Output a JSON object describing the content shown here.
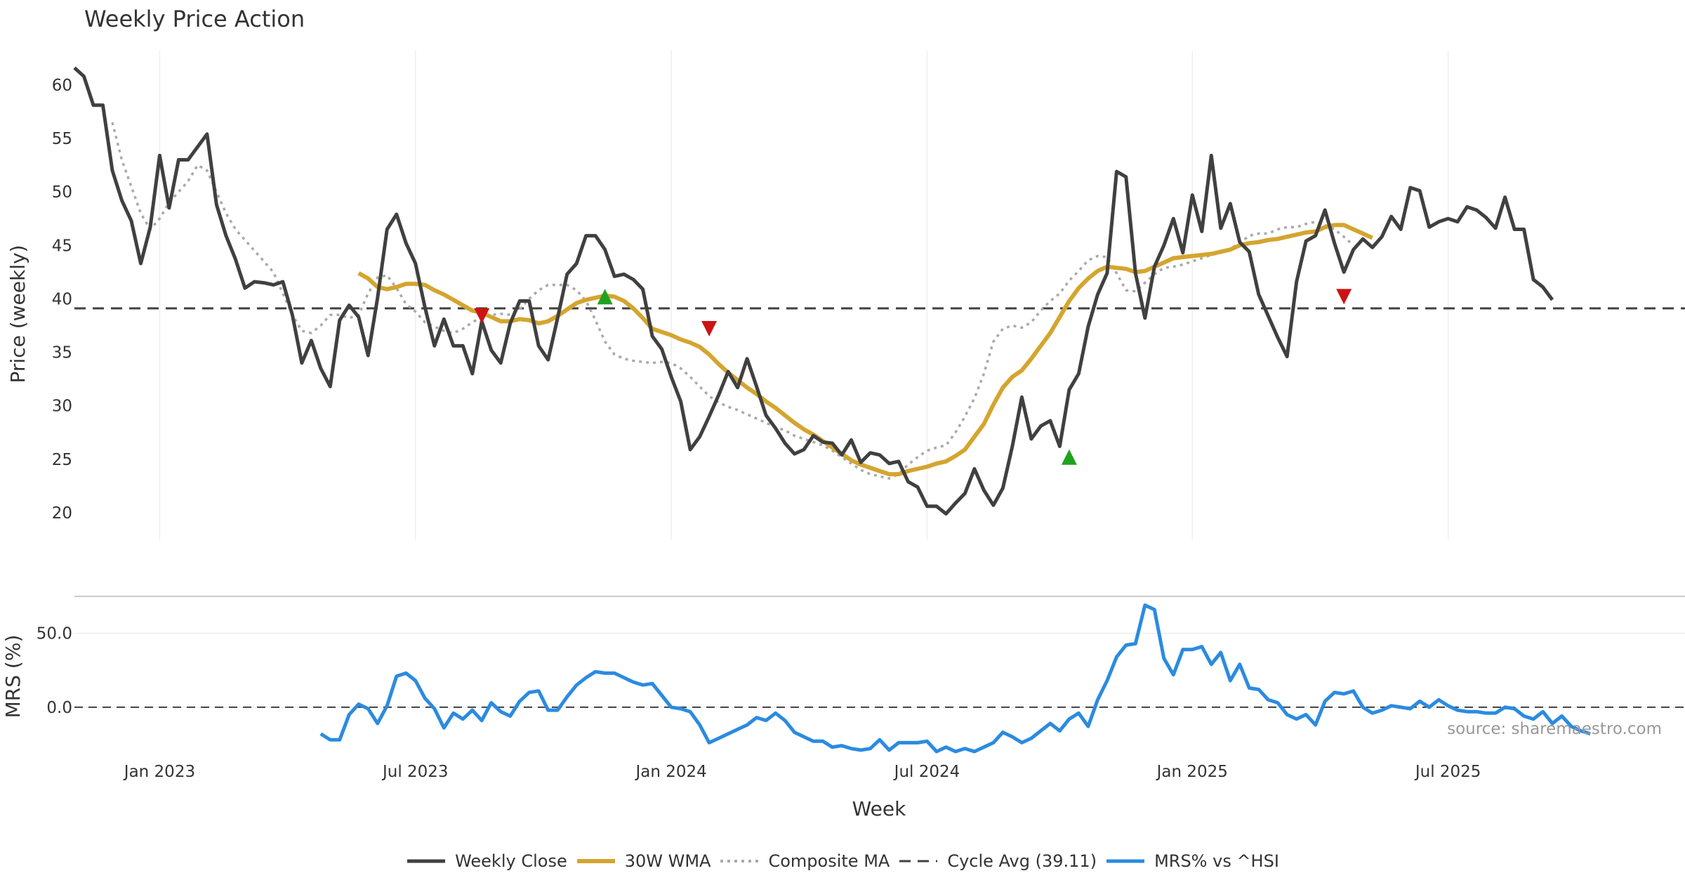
{
  "title": "Weekly Price Action",
  "source_note": "source: sharemaestro.com",
  "legend": [
    {
      "label": "Weekly Close",
      "color": "#404040",
      "style": "solid"
    },
    {
      "label": "30W WMA",
      "color": "#D4A52F",
      "style": "solid"
    },
    {
      "label": "Composite MA",
      "color": "#AAAAAA",
      "style": "dotted"
    },
    {
      "label": "Cycle Avg (39.11)",
      "color": "#404040",
      "style": "dashed"
    },
    {
      "label": "MRS% vs ^HSI",
      "color": "#2B8BE0",
      "style": "solid"
    }
  ],
  "colors": {
    "close": "#404040",
    "wma": "#D4A52F",
    "composite": "#AAAAAA",
    "cycle": "#404040",
    "mrs": "#2B8BE0",
    "up": "#1FA21F",
    "down": "#CC1414",
    "grid": "#EEEEEE"
  },
  "chart_data": [
    {
      "type": "line",
      "panel": "price",
      "ylabel": "Price (weekly)",
      "y_ticks": [
        20,
        25,
        30,
        35,
        40,
        45,
        50,
        55,
        60
      ],
      "ylim": [
        17.5,
        64
      ],
      "x_range_weeks": [
        0,
        170
      ],
      "x_ticks": [
        {
          "label": "Jan 2023",
          "week": 9
        },
        {
          "label": "Jul 2023",
          "week": 36
        },
        {
          "label": "Jan 2024",
          "week": 63
        },
        {
          "label": "Jul 2024",
          "week": 90
        },
        {
          "label": "Jan 2025",
          "week": 118
        },
        {
          "label": "Jul 2025",
          "week": 145
        }
      ],
      "cycle_avg": 39.11,
      "series": [
        {
          "name": "Weekly Close",
          "start_week": 0,
          "values": [
            61.6,
            60.8,
            58.1,
            58.1,
            52.0,
            49.2,
            47.3,
            43.3,
            46.7,
            53.4,
            48.5,
            53.0,
            53.0,
            54.2,
            55.4,
            48.8,
            45.9,
            43.7,
            41.0,
            41.6,
            41.5,
            41.3,
            41.6,
            38.5,
            34.0,
            36.1,
            33.5,
            31.8,
            38.0,
            39.4,
            38.3,
            34.7,
            40.1,
            46.5,
            47.9,
            45.2,
            43.3,
            39.2,
            35.6,
            38.1,
            35.6,
            35.6,
            33.0,
            37.9,
            35.2,
            34.0,
            37.7,
            39.8,
            39.8,
            35.6,
            34.3,
            38.2,
            42.3,
            43.3,
            45.9,
            45.9,
            44.6,
            42.1,
            42.3,
            41.8,
            40.9,
            36.5,
            35.3,
            32.7,
            30.4,
            25.9,
            27.1,
            29.0,
            31.0,
            33.2,
            31.7,
            34.4,
            31.8,
            29.1,
            27.9,
            26.5,
            25.5,
            25.9,
            27.2,
            26.6,
            26.5,
            25.4,
            26.8,
            24.7,
            25.6,
            25.4,
            24.6,
            24.8,
            22.9,
            22.4,
            20.6,
            20.6,
            19.9,
            20.9,
            21.8,
            24.1,
            22.1,
            20.7,
            22.3,
            26.2,
            30.8,
            26.9,
            28.1,
            28.6,
            26.2,
            31.5,
            33.0,
            37.4,
            40.4,
            42.4,
            51.9,
            51.4,
            42.4,
            38.2,
            43.0,
            45.0,
            47.5,
            44.3,
            49.7,
            46.3,
            53.4,
            46.6,
            48.9,
            45.3,
            44.4,
            40.4,
            38.4,
            36.4,
            34.6,
            41.6,
            45.4,
            45.9,
            48.3,
            45.2,
            42.5,
            44.6,
            45.6,
            44.8,
            45.8,
            47.7,
            46.5,
            50.4,
            50.1,
            46.7,
            47.2,
            47.5,
            47.2,
            48.6,
            48.3,
            47.6,
            46.6,
            49.5,
            46.5,
            46.5,
            41.8,
            41.1,
            39.9
          ]
        },
        {
          "name": "30W WMA",
          "start_week": 30,
          "values": [
            42.4,
            41.9,
            41.1,
            40.9,
            41.1,
            41.4,
            41.4,
            41.3,
            40.8,
            40.4,
            39.9,
            39.4,
            38.9,
            38.7,
            38.3,
            37.9,
            37.9,
            38.1,
            38.0,
            37.7,
            37.9,
            38.4,
            39.0,
            39.6,
            39.9,
            40.1,
            40.3,
            40.2,
            39.8,
            39.1,
            38.2,
            37.2,
            36.9,
            36.6,
            36.2,
            35.9,
            35.5,
            34.8,
            33.9,
            33.1,
            32.4,
            31.7,
            31.1,
            30.4,
            29.8,
            29.1,
            28.4,
            27.8,
            27.3,
            26.7,
            26.1,
            25.5,
            24.9,
            24.5,
            24.2,
            23.9,
            23.6,
            23.6,
            23.9,
            24.1,
            24.3,
            24.6,
            24.8,
            25.3,
            25.9,
            27.1,
            28.3,
            30.1,
            31.7,
            32.7,
            33.3,
            34.4,
            35.6,
            36.8,
            38.3,
            39.8,
            41.0,
            41.9,
            42.6,
            43.0,
            42.9,
            42.8,
            42.5,
            42.6,
            43.0,
            43.4,
            43.8,
            43.9,
            44.0,
            44.1,
            44.2,
            44.4,
            44.6,
            45.0,
            45.2,
            45.3,
            45.5,
            45.6,
            45.8,
            46.0,
            46.2,
            46.3,
            46.7,
            46.9,
            46.9,
            46.5,
            46.1,
            45.7
          ]
        },
        {
          "name": "Composite MA",
          "start_week": 4,
          "values": [
            56.5,
            53.0,
            50.5,
            48.0,
            46.5,
            47.5,
            49.0,
            50.0,
            51.0,
            52.5,
            52.0,
            50.0,
            48.0,
            46.5,
            45.5,
            44.5,
            43.5,
            42.5,
            40.5,
            38.5,
            37.0,
            36.8,
            37.5,
            38.5,
            38.5,
            38.2,
            38.5,
            40.5,
            42.0,
            42.2,
            41.0,
            39.5,
            38.8,
            37.8,
            37.4,
            37.0,
            36.8,
            37.2,
            37.8,
            38.3,
            38.5,
            38.6,
            38.5,
            39.0,
            40.0,
            40.8,
            41.3,
            41.3,
            41.3,
            40.8,
            39.8,
            38.0,
            36.0,
            34.8,
            34.4,
            34.2,
            34.1,
            34.0,
            34.1,
            34.0,
            33.5,
            32.7,
            31.8,
            30.9,
            30.3,
            29.9,
            29.6,
            29.2,
            28.8,
            28.4,
            28.0,
            27.7,
            27.2,
            26.9,
            26.6,
            26.3,
            25.8,
            25.2,
            24.6,
            24.0,
            23.6,
            23.4,
            23.2,
            23.6,
            24.5,
            25.2,
            25.8,
            26.1,
            26.3,
            27.5,
            29.0,
            30.7,
            33.0,
            36.0,
            37.2,
            37.5,
            37.3,
            37.8,
            38.9,
            39.8,
            40.5,
            41.7,
            42.6,
            43.6,
            44.0,
            43.9,
            42.4,
            40.8,
            40.7,
            41.5,
            42.3,
            42.9,
            43.0,
            43.2,
            43.5,
            43.8,
            44.1,
            44.3,
            44.7,
            45.2,
            45.9,
            46.1,
            46.1,
            46.5,
            46.7,
            46.7,
            47.0,
            47.2,
            46.9,
            46.5,
            45.8,
            45.0
          ]
        }
      ],
      "signals": [
        {
          "type": "sell",
          "week": 43,
          "price": 38.4
        },
        {
          "type": "buy",
          "week": 56,
          "price": 40.2
        },
        {
          "type": "sell",
          "week": 67,
          "price": 37.2
        },
        {
          "type": "buy",
          "week": 105,
          "price": 25.2
        },
        {
          "type": "sell",
          "week": 134,
          "price": 40.2
        }
      ]
    },
    {
      "type": "line",
      "panel": "mrs",
      "ylabel": "MRS (%)",
      "y_ticks": [
        0.0,
        50.0
      ],
      "ylim": [
        -30,
        75
      ],
      "xlabel": "Week",
      "series": [
        {
          "name": "MRS% vs ^HSI",
          "start_week": 26,
          "values": [
            -18,
            -22,
            -22,
            -5,
            2,
            -1,
            -11,
            1,
            21,
            23,
            18,
            6,
            -1,
            -14,
            -4,
            -8,
            -2,
            -9,
            3,
            -3,
            -6,
            4,
            10,
            11,
            -2,
            -2,
            7,
            15,
            20,
            24,
            23,
            23,
            20,
            17,
            15,
            16,
            8,
            0,
            -1,
            -3,
            -12,
            -24,
            -21,
            -18,
            -15,
            -12,
            -7,
            -9,
            -4,
            -9,
            -17,
            -20,
            -23,
            -23,
            -27,
            -26,
            -28,
            -29,
            -28,
            -22,
            -29,
            -24,
            -24,
            -24,
            -23,
            -30,
            -27,
            -30,
            -28,
            -30,
            -27,
            -24,
            -17,
            -20,
            -24,
            -21,
            -16,
            -11,
            -16,
            -8,
            -4,
            -13,
            5,
            18,
            34,
            42,
            43,
            69,
            66,
            33,
            22,
            39,
            39,
            41,
            29,
            37,
            18,
            29,
            13,
            12,
            5,
            3,
            -5,
            -8,
            -5,
            -12,
            4,
            10,
            9,
            11,
            0,
            -4,
            -2,
            1,
            0,
            -1,
            4,
            0,
            5,
            1,
            -2,
            -3,
            -3,
            -4,
            -4,
            0,
            -1,
            -6,
            -8,
            -3,
            -11,
            -6,
            -13,
            -16,
            -18
          ]
        }
      ]
    }
  ]
}
